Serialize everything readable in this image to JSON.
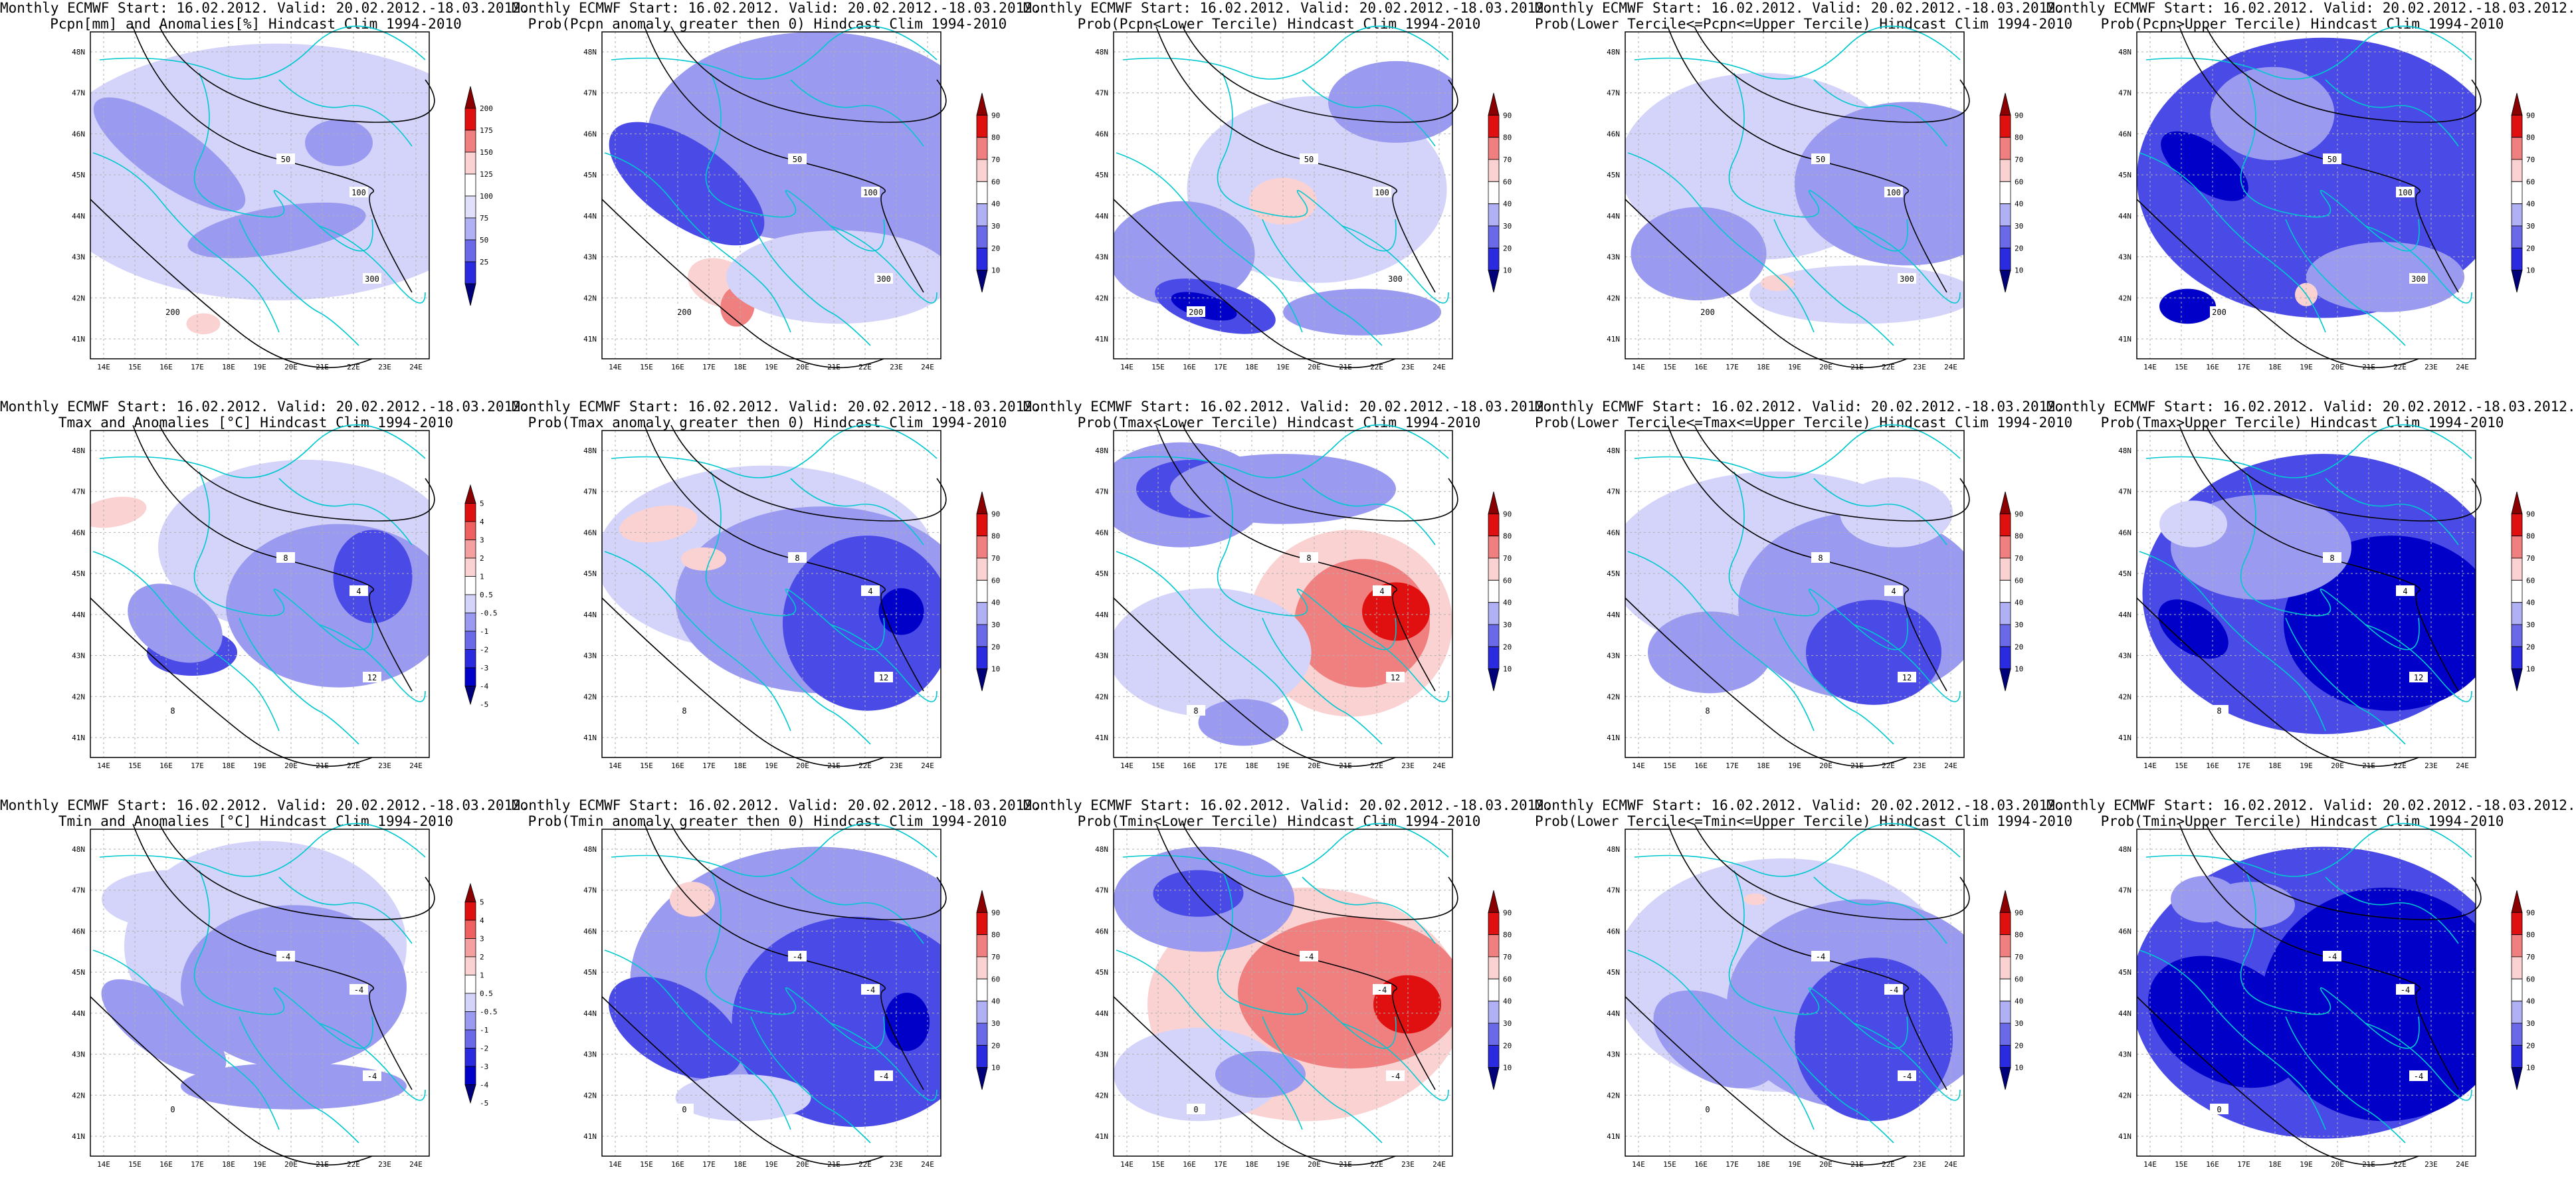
{
  "axes": {
    "lat_ticks": [
      "41N",
      "42N",
      "43N",
      "44N",
      "45N",
      "46N",
      "47N",
      "48N"
    ],
    "lon_ticks": [
      "14E",
      "15E",
      "16E",
      "17E",
      "18E",
      "19E",
      "20E",
      "21E",
      "22E",
      "23E",
      "24E"
    ]
  },
  "colorbars": {
    "anom_pcpn": [
      "25",
      "50",
      "75",
      "100",
      "125",
      "150",
      "175",
      "200"
    ],
    "anom_temp": [
      "-5",
      "-4",
      "-3",
      "-2",
      "-1",
      "-0.5",
      "0.5",
      "1",
      "2",
      "3",
      "4",
      "5"
    ],
    "prob": [
      "10",
      "20",
      "30",
      "40",
      "60",
      "70",
      "80",
      "90"
    ]
  },
  "colors": {
    "land_border": "#00c8d0",
    "contour": "#000000",
    "blue_dark": "#0000c8",
    "blue_mid": "#4a4ae6",
    "blue_light": "#9a9af0",
    "blue_pale": "#d4d4fa",
    "red_pale": "#fad2d2",
    "red_mid": "#f08080",
    "red_dark": "#e01010"
  },
  "panels": [
    {
      "line1": "Monthly ECMWF Start: 16.02.2012. Valid: 20.02.2012.-18.03.2012.",
      "line2": "Pcpn[mm] and Anomalies[%] Hindcast Clim 1994-2010",
      "cbar": "anom_pcpn",
      "contour_labels": [
        "50",
        "100",
        "200",
        "300"
      ]
    },
    {
      "line1": "Monthly ECMWF Start: 16.02.2012. Valid: 20.02.2012.-18.03.2012.",
      "line2": "Prob(Pcpn anomaly greater then 0) Hindcast Clim 1994-2010",
      "cbar": "prob",
      "contour_labels": [
        "50",
        "100",
        "200",
        "300"
      ]
    },
    {
      "line1": "Monthly ECMWF Start: 16.02.2012. Valid: 20.02.2012.-18.03.2012.",
      "line2": "Prob(Pcpn<Lower Tercile) Hindcast Clim 1994-2010",
      "cbar": "prob",
      "contour_labels": [
        "50",
        "100",
        "200",
        "300"
      ]
    },
    {
      "line1": "Monthly ECMWF Start: 16.02.2012. Valid: 20.02.2012.-18.03.2012.",
      "line2": "Prob(Lower Tercile<=Pcpn<=Upper Tercile) Hindcast Clim 1994-2010",
      "cbar": "prob",
      "contour_labels": [
        "50",
        "100",
        "200",
        "300"
      ]
    },
    {
      "line1": "Monthly ECMWF Start: 16.02.2012. Valid: 20.02.2012.-18.03.2012.",
      "line2": "Prob(Pcpn>Upper Tercile) Hindcast Clim 1994-2010",
      "cbar": "prob",
      "contour_labels": [
        "50",
        "100",
        "200",
        "300"
      ]
    },
    {
      "line1": "Monthly ECMWF Start: 16.02.2012. Valid: 20.02.2012.-18.03.2012.",
      "line2": "Tmax and Anomalies [°C] Hindcast Clim 1994-2010",
      "cbar": "anom_temp",
      "contour_labels": [
        "8",
        "4",
        "8",
        "12"
      ]
    },
    {
      "line1": "Monthly ECMWF Start: 16.02.2012. Valid: 20.02.2012.-18.03.2012.",
      "line2": "Prob(Tmax anomaly greater then 0) Hindcast Clim 1994-2010",
      "cbar": "prob",
      "contour_labels": [
        "8",
        "4",
        "8",
        "12"
      ]
    },
    {
      "line1": "Monthly ECMWF Start: 16.02.2012. Valid: 20.02.2012.-18.03.2012.",
      "line2": "Prob(Tmax<Lower Tercile) Hindcast Clim 1994-2010",
      "cbar": "prob",
      "contour_labels": [
        "8",
        "4",
        "8",
        "12"
      ]
    },
    {
      "line1": "Monthly ECMWF Start: 16.02.2012. Valid: 20.02.2012.-18.03.2012.",
      "line2": "Prob(Lower Tercile<=Tmax<=Upper Tercile) Hindcast Clim 1994-2010",
      "cbar": "prob",
      "contour_labels": [
        "8",
        "4",
        "8",
        "12"
      ]
    },
    {
      "line1": "Monthly ECMWF Start: 16.02.2012. Valid: 20.02.2012.-18.03.2012.",
      "line2": "Prob(Tmax>Upper Tercile) Hindcast Clim 1994-2010",
      "cbar": "prob",
      "contour_labels": [
        "8",
        "4",
        "8",
        "12"
      ]
    },
    {
      "line1": "Monthly ECMWF Start: 16.02.2012. Valid: 20.02.2012.-18.03.2012.",
      "line2": "Tmin and Anomalies [°C] Hindcast Clim 1994-2010",
      "cbar": "anom_temp",
      "contour_labels": [
        "-4",
        "-4",
        "0",
        "-4"
      ]
    },
    {
      "line1": "Monthly ECMWF Start: 16.02.2012. Valid: 20.02.2012.-18.03.2012.",
      "line2": "Prob(Tmin anomaly greater then 0) Hindcast Clim 1994-2010",
      "cbar": "prob",
      "contour_labels": [
        "-4",
        "-4",
        "0",
        "-4"
      ]
    },
    {
      "line1": "Monthly ECMWF Start: 16.02.2012. Valid: 20.02.2012.-18.03.2012.",
      "line2": "Prob(Tmin<Lower Tercile) Hindcast Clim 1994-2010",
      "cbar": "prob",
      "contour_labels": [
        "-4",
        "-4",
        "0",
        "-4"
      ]
    },
    {
      "line1": "Monthly ECMWF Start: 16.02.2012. Valid: 20.02.2012.-18.03.2012.",
      "line2": "Prob(Lower Tercile<=Tmin<=Upper Tercile) Hindcast Clim 1994-2010",
      "cbar": "prob",
      "contour_labels": [
        "-4",
        "-4",
        "0",
        "-4"
      ]
    },
    {
      "line1": "Monthly ECMWF Start: 16.02.2012. Valid: 20.02.2012.-18.03.2012.",
      "line2": "Prob(Tmin>Upper Tercile) Hindcast Clim 1994-2010",
      "cbar": "prob",
      "contour_labels": [
        "-4",
        "-4",
        "0",
        "-4"
      ]
    }
  ]
}
